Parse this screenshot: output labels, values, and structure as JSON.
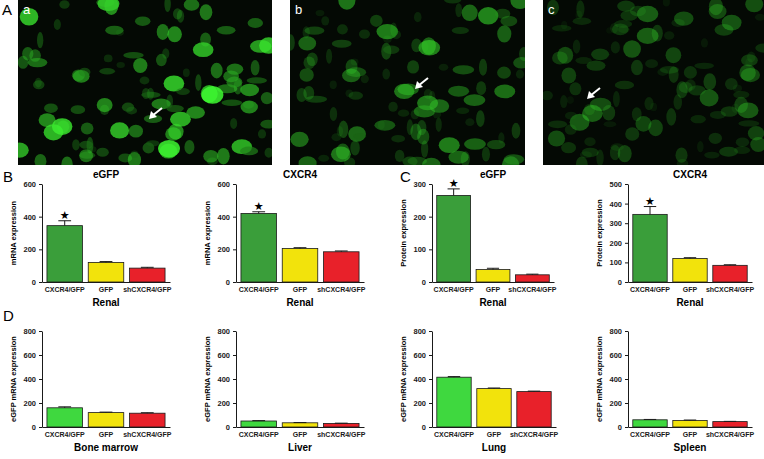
{
  "panel_labels": [
    "A",
    "B",
    "C",
    "D"
  ],
  "image_labels": [
    "a",
    "b",
    "c"
  ],
  "chart_data": [
    {
      "type": "bar",
      "title": "eGFP",
      "y_label": "mRNA expression",
      "x_label": "Renal",
      "categories": [
        "CXCR4/GFP",
        "GFP",
        "shCXCR4/GFP"
      ],
      "values": [
        345,
        120,
        85
      ],
      "errors": [
        30,
        5,
        5
      ],
      "colors": [
        "#3a9e3a",
        "#f2e30c",
        "#e8212a"
      ],
      "ylim": [
        0,
        600
      ],
      "yticks": [
        0,
        200,
        400,
        600
      ],
      "annotations": [
        {
          "category": "CXCR4/GFP",
          "text": "★"
        }
      ]
    },
    {
      "type": "bar",
      "title": "CXCR4",
      "y_label": "mRNA expression",
      "x_label": "Renal",
      "categories": [
        "CXCR4/GFP",
        "GFP",
        "shCXCR4/GFP"
      ],
      "values": [
        420,
        205,
        185
      ],
      "errors": [
        10,
        5,
        5
      ],
      "colors": [
        "#3a9e3a",
        "#f2e30c",
        "#e8212a"
      ],
      "ylim": [
        0,
        600
      ],
      "yticks": [
        0,
        200,
        400,
        600
      ],
      "annotations": [
        {
          "category": "CXCR4/GFP",
          "text": "★"
        }
      ]
    },
    {
      "type": "bar",
      "title": "eGFP",
      "y_label": "Protein expression",
      "x_label": "Renal",
      "categories": [
        "CXCR4/GFP",
        "GFP",
        "shCXCR4/GFP"
      ],
      "values": [
        265,
        38,
        22
      ],
      "errors": [
        20,
        4,
        2
      ],
      "colors": [
        "#3a9e3a",
        "#f2e30c",
        "#e8212a"
      ],
      "ylim": [
        0,
        300
      ],
      "yticks": [
        0,
        100,
        200,
        300
      ],
      "annotations": [
        {
          "category": "CXCR4/GFP",
          "text": "★"
        }
      ]
    },
    {
      "type": "bar",
      "title": "CXCR4",
      "y_label": "Protein expression",
      "x_label": "Renal",
      "categories": [
        "CXCR4/GFP",
        "GFP",
        "shCXCR4/GFP"
      ],
      "values": [
        345,
        120,
        85
      ],
      "errors": [
        40,
        4,
        3
      ],
      "colors": [
        "#3a9e3a",
        "#f2e30c",
        "#e8212a"
      ],
      "ylim": [
        0,
        500
      ],
      "yticks": [
        0,
        100,
        200,
        300,
        400,
        500
      ],
      "annotations": [
        {
          "category": "CXCR4/GFP",
          "text": "★"
        }
      ]
    },
    {
      "type": "bar",
      "y_label": "eGFP mRNA expression",
      "x_label": "Bone marrow",
      "categories": [
        "CXCR4/GFP",
        "GFP",
        "shCXCR4/GFP"
      ],
      "values": [
        160,
        120,
        115
      ],
      "errors": [
        8,
        4,
        4
      ],
      "colors": [
        "#3fd83f",
        "#f2e30c",
        "#e8212a"
      ],
      "ylim": [
        0,
        800
      ],
      "yticks": [
        0,
        200,
        400,
        600,
        800
      ]
    },
    {
      "type": "bar",
      "y_label": "eGFP mRNA expression",
      "x_label": "Liver",
      "categories": [
        "CXCR4/GFP",
        "GFP",
        "shCXCR4/GFP"
      ],
      "values": [
        50,
        35,
        30
      ],
      "errors": [
        3,
        2,
        2
      ],
      "colors": [
        "#3fd83f",
        "#f2e30c",
        "#e8212a"
      ],
      "ylim": [
        0,
        800
      ],
      "yticks": [
        0,
        200,
        400,
        600,
        800
      ]
    },
    {
      "type": "bar",
      "y_label": "eGFP mRNA expression",
      "x_label": "Lung",
      "categories": [
        "CXCR4/GFP",
        "GFP",
        "shCXCR4/GFP"
      ],
      "values": [
        415,
        320,
        295
      ],
      "errors": [
        5,
        5,
        4
      ],
      "colors": [
        "#3fd83f",
        "#f2e30c",
        "#e8212a"
      ],
      "ylim": [
        0,
        800
      ],
      "yticks": [
        0,
        200,
        400,
        600,
        800
      ]
    },
    {
      "type": "bar",
      "y_label": "eGFP mRNA expression",
      "x_label": "Spleen",
      "categories": [
        "CXCR4/GFP",
        "GFP",
        "shCXCR4/GFP"
      ],
      "values": [
        60,
        55,
        45
      ],
      "errors": [
        3,
        3,
        2
      ],
      "colors": [
        "#3fd83f",
        "#f2e30c",
        "#e8212a"
      ],
      "ylim": [
        0,
        800
      ],
      "yticks": [
        0,
        200,
        400,
        600,
        800
      ]
    }
  ]
}
